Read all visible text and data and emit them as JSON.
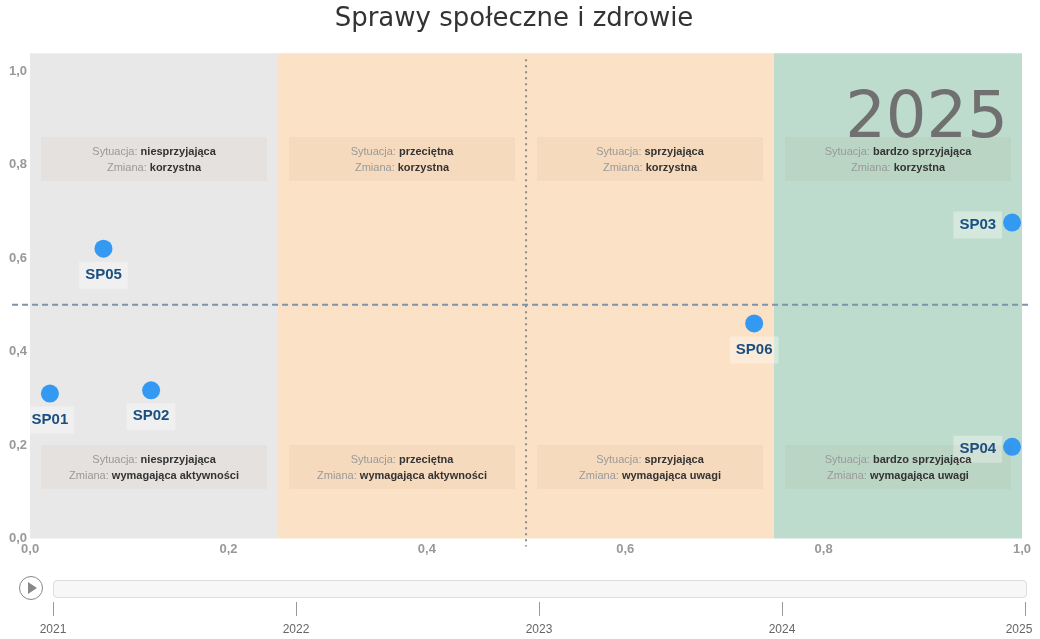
{
  "chart_data": {
    "type": "scatter",
    "title": "Sprawy społeczne i zdrowie",
    "xlim": [
      0,
      1
    ],
    "ylim": [
      0,
      1
    ],
    "xticks": [
      {
        "value": 0,
        "label": "0,0"
      },
      {
        "value": 0.2,
        "label": "0,2"
      },
      {
        "value": 0.4,
        "label": "0,4"
      },
      {
        "value": 0.6,
        "label": "0,6"
      },
      {
        "value": 0.8,
        "label": "0,8"
      },
      {
        "value": 1,
        "label": "1,0"
      }
    ],
    "yticks": [
      {
        "value": 0,
        "label": "0,0"
      },
      {
        "value": 0.2,
        "label": "0,2"
      },
      {
        "value": 0.4,
        "label": "0,4"
      },
      {
        "value": 0.6,
        "label": "0,6"
      },
      {
        "value": 0.8,
        "label": "0,8"
      },
      {
        "value": 1,
        "label": "1,0"
      }
    ],
    "grid": false,
    "legend": false,
    "marker": "circle",
    "series": [
      {
        "name": "SP01",
        "color": "#3399f3",
        "x": [
          0.02
        ],
        "values": [
          0.31
        ]
      },
      {
        "name": "SP02",
        "color": "#3399f3",
        "x": [
          0.122
        ],
        "values": [
          0.317
        ]
      },
      {
        "name": "SP03",
        "color": "#3399f3",
        "x": [
          0.99
        ],
        "values": [
          0.676
        ]
      },
      {
        "name": "SP04",
        "color": "#3399f3",
        "x": [
          0.99
        ],
        "values": [
          0.196
        ]
      },
      {
        "name": "SP05",
        "color": "#3399f3",
        "x": [
          0.074
        ],
        "values": [
          0.62
        ]
      },
      {
        "name": "SP06",
        "color": "#3399f3",
        "x": [
          0.73
        ],
        "values": [
          0.46
        ]
      }
    ],
    "bands": [
      {
        "axis": "x",
        "from": 0,
        "to": 0.25,
        "color": "#e8e8e8"
      },
      {
        "axis": "x",
        "from": 0.25,
        "to": 0.75,
        "color": "#fbe1c5"
      },
      {
        "axis": "x",
        "from": 0.75,
        "to": 1,
        "color": "#bddccd"
      }
    ],
    "ref_lines": [
      {
        "axis": "x",
        "value": 0.5,
        "color": "#8a8a8a",
        "line_style": "dotted"
      },
      {
        "axis": "y",
        "value": 0.5,
        "color": "#7f93a8",
        "line_style": "dashed"
      }
    ],
    "annotations": [
      "2025",
      "2021",
      "2022",
      "2023",
      "2024",
      "2025",
      "Sytuacja: niesprzyjająca\nZmiana: korzystna",
      "Sytuacja: przeciętna\nZmiana: korzystna",
      "Sytuacja: sprzyjająca\nZmiana: korzystna",
      "Sytuacja: bardzo sprzyjająca\nZmiana: korzystna",
      "Sytuacja: niesprzyjająca\nZmiana: wymagająca aktywności",
      "Sytuacja: przeciętna\nZmiana: wymagająca aktywności",
      "Sytuacja: sprzyjająca\nZmiana: wymagająca uwagi",
      "Sytuacja: bardzo sprzyjająca\nZmiana: wymagająca uwagi"
    ]
  }
}
